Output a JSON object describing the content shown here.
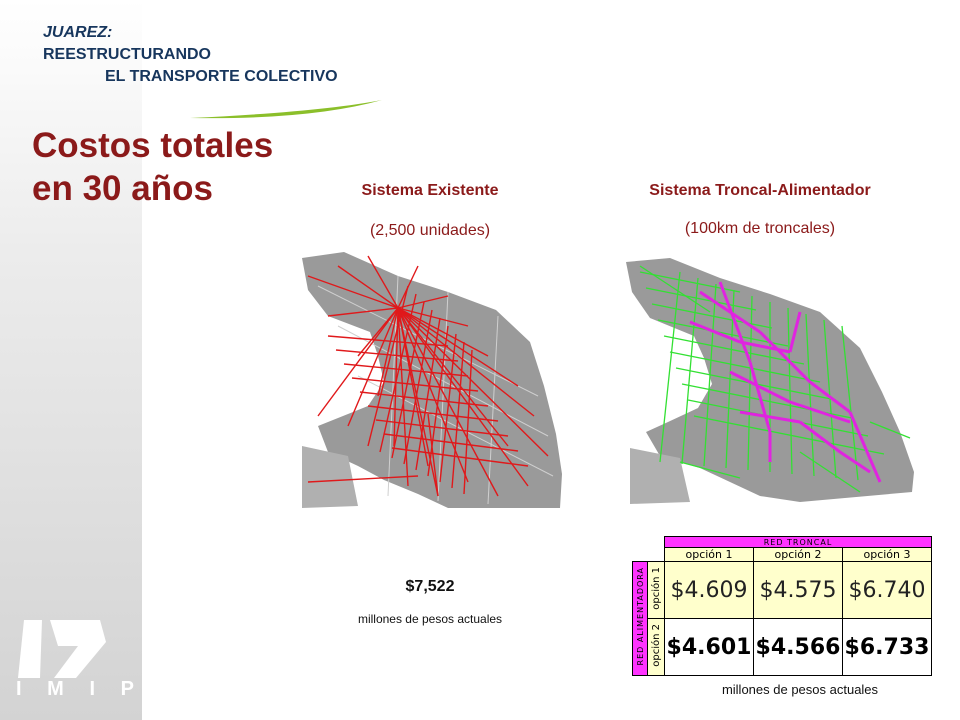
{
  "header": {
    "line1": "JUAREZ:",
    "line2": "REESTRUCTURANDO",
    "line3": "EL TRANSPORTE COLECTIVO"
  },
  "title": {
    "line1": "Costos totales",
    "line2": "en 30 años"
  },
  "existing": {
    "title": "Sistema Existente",
    "subtitle": "(2,500 unidades)",
    "route_color": "#e0191b",
    "cost": "$7,522",
    "cost_unit": "millones de pesos actuales"
  },
  "trunk": {
    "title": "Sistema Troncal-Alimentador",
    "subtitle": "(100km de troncales)",
    "feeder_color": "#33e033",
    "trunk_color": "#e024e0"
  },
  "cost_table": {
    "col_group": "RED TRONCAL",
    "row_group": "RED ALIMENTADORA",
    "columns": [
      "opción 1",
      "opción 2",
      "opción 3"
    ],
    "rows": [
      {
        "label": "opción 1",
        "values": [
          "$4.609",
          "$4.575",
          "$6.740"
        ]
      },
      {
        "label": "opción 2",
        "values": [
          "$4.601",
          "$4.566",
          "$6.733"
        ]
      }
    ],
    "unit": "millones de pesos actuales",
    "header_color": "#ff33ff",
    "highlight_color": "#ffffcc"
  },
  "logo": {
    "letters": [
      "I",
      "M",
      "I",
      "P"
    ]
  },
  "colors": {
    "title": "#8b1a1a",
    "header": "#17365d",
    "accent_swoosh": "#8bbf2a"
  }
}
